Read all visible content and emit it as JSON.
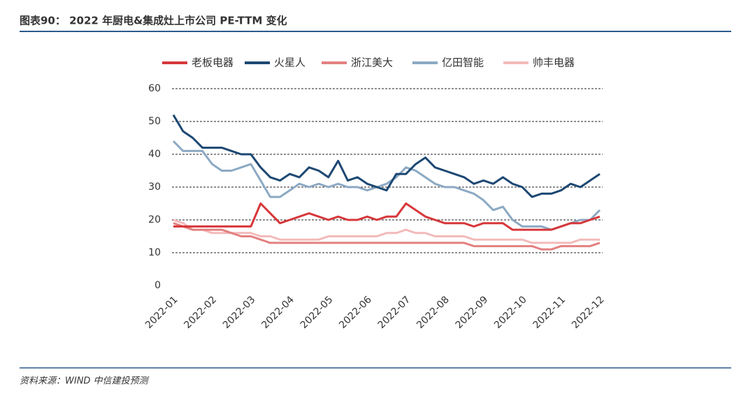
{
  "chart_data": {
    "type": "line",
    "title": "图表90：  2022 年厨电&集成灶上市公司 PE-TTM 变化",
    "source": "资料来源：WIND    中信建投预测",
    "categories": [
      "2022-01",
      null,
      null,
      null,
      "2022-02",
      null,
      null,
      null,
      "2022-03",
      null,
      null,
      null,
      "2022-04",
      null,
      null,
      null,
      "2022-05",
      null,
      null,
      null,
      "2022-06",
      null,
      null,
      null,
      "2022-07",
      null,
      null,
      null,
      "2022-08",
      null,
      null,
      null,
      "2022-09",
      null,
      null,
      null,
      "2022-10",
      null,
      null,
      null,
      "2022-11",
      null,
      null,
      null,
      "2022-12"
    ],
    "series": [
      {
        "name": "老板电器",
        "color": "#d7373a",
        "values": [
          18,
          18,
          18,
          18,
          18,
          18,
          18,
          18,
          18,
          25,
          22,
          19,
          20,
          21,
          22,
          21,
          20,
          21,
          20,
          20,
          21,
          20,
          21,
          21,
          25,
          23,
          21,
          20,
          19,
          19,
          19,
          18,
          19,
          19,
          19,
          17,
          17,
          17,
          17,
          17,
          18,
          19,
          19,
          20,
          21
        ]
      },
      {
        "name": "火星人",
        "color": "#1d4873",
        "values": [
          52,
          47,
          45,
          42,
          42,
          42,
          41,
          40,
          40,
          36,
          33,
          32,
          34,
          33,
          36,
          35,
          33,
          38,
          32,
          33,
          31,
          30,
          29,
          34,
          34,
          37,
          39,
          36,
          35,
          34,
          33,
          31,
          32,
          31,
          33,
          31,
          30,
          27,
          28,
          28,
          29,
          31,
          30,
          32,
          34
        ]
      },
      {
        "name": "浙江美大",
        "color": "#e38080",
        "values": [
          19,
          18,
          17,
          17,
          17,
          17,
          16,
          15,
          15,
          14,
          13,
          13,
          13,
          13,
          13,
          13,
          13,
          13,
          13,
          13,
          13,
          13,
          13,
          13,
          13,
          13,
          13,
          13,
          13,
          13,
          13,
          12,
          12,
          12,
          12,
          12,
          12,
          12,
          11,
          11,
          12,
          12,
          12,
          12,
          13
        ]
      },
      {
        "name": "亿田智能",
        "color": "#8ca9c3",
        "values": [
          44,
          41,
          41,
          41,
          37,
          35,
          35,
          36,
          37,
          32,
          27,
          27,
          29,
          31,
          30,
          31,
          30,
          31,
          30,
          30,
          29,
          30,
          31,
          33,
          36,
          35,
          33,
          31,
          30,
          30,
          29,
          28,
          26,
          23,
          24,
          20,
          18,
          18,
          18,
          17,
          18,
          19,
          20,
          20,
          23
        ]
      },
      {
        "name": "帅丰电器",
        "color": "#f3baba",
        "values": [
          20,
          19,
          17,
          17,
          16,
          16,
          16,
          16,
          16,
          15,
          15,
          14,
          14,
          14,
          14,
          14,
          15,
          15,
          15,
          15,
          15,
          15,
          16,
          16,
          17,
          16,
          16,
          15,
          15,
          15,
          15,
          14,
          14,
          14,
          14,
          14,
          14,
          13,
          13,
          13,
          13,
          13,
          14,
          14,
          14
        ]
      }
    ],
    "ylim": [
      0,
      60
    ],
    "yticks": [
      0,
      10,
      20,
      30,
      40,
      50,
      60
    ],
    "grid": true
  }
}
